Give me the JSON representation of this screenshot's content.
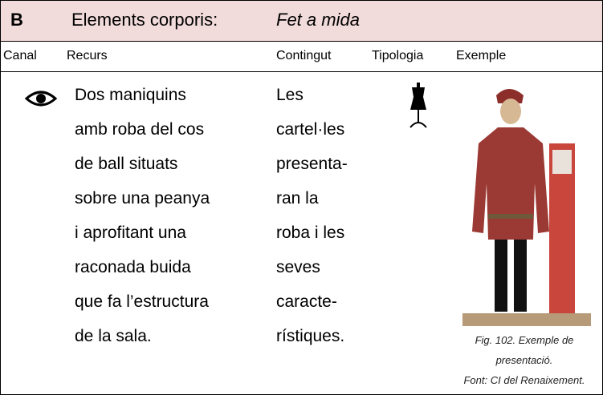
{
  "header": {
    "letter": "B",
    "title": "Elements corporis:",
    "subtitle": "Fet a mida"
  },
  "columns": [
    "Canal",
    "Recurs",
    "Contingut",
    "Tipologia",
    "Exemple"
  ],
  "row": {
    "recurs": [
      "Dos maniquins",
      "amb roba del cos",
      "de ball situats",
      "sobre una peanya",
      "i aprofitant una",
      "raconada buida",
      "que fa l’estructura",
      "de la sala."
    ],
    "contingut": [
      "Les",
      "cartel·les",
      "presenta-",
      "ran la",
      "roba i les",
      "seves",
      "caracte-",
      "rístiques."
    ],
    "caption": [
      "Fig. 102. Exemple de",
      "presentació.",
      "Font: CI del Renaixement."
    ]
  }
}
